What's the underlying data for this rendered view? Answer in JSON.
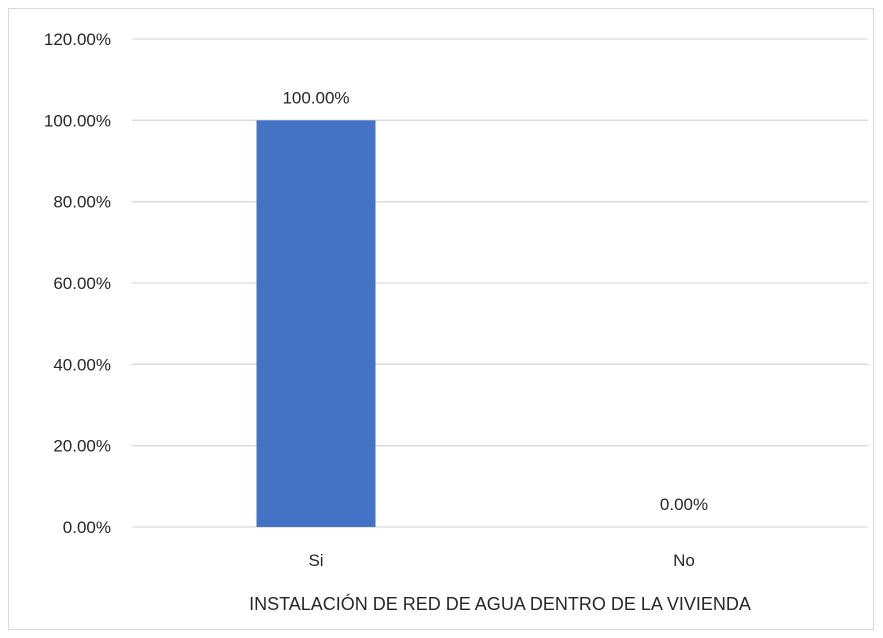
{
  "chart_data": {
    "type": "bar",
    "categories": [
      "Si",
      "No"
    ],
    "values": [
      100.0,
      0.0
    ],
    "data_labels": [
      "100.00%",
      "0.00%"
    ],
    "title": "",
    "xlabel": "INSTALACIÓN DE RED DE AGUA DENTRO DE LA VIVIENDA",
    "ylabel": "",
    "ylim": [
      0,
      120
    ],
    "yticks": [
      0,
      20,
      40,
      60,
      80,
      100,
      120
    ],
    "ytick_labels": [
      "0.00%",
      "20.00%",
      "40.00%",
      "60.00%",
      "80.00%",
      "100.00%",
      "120.00%"
    ],
    "grid": true,
    "legend": "none",
    "bar_color": "#4472c4",
    "grid_color": "#d9d9d9"
  }
}
